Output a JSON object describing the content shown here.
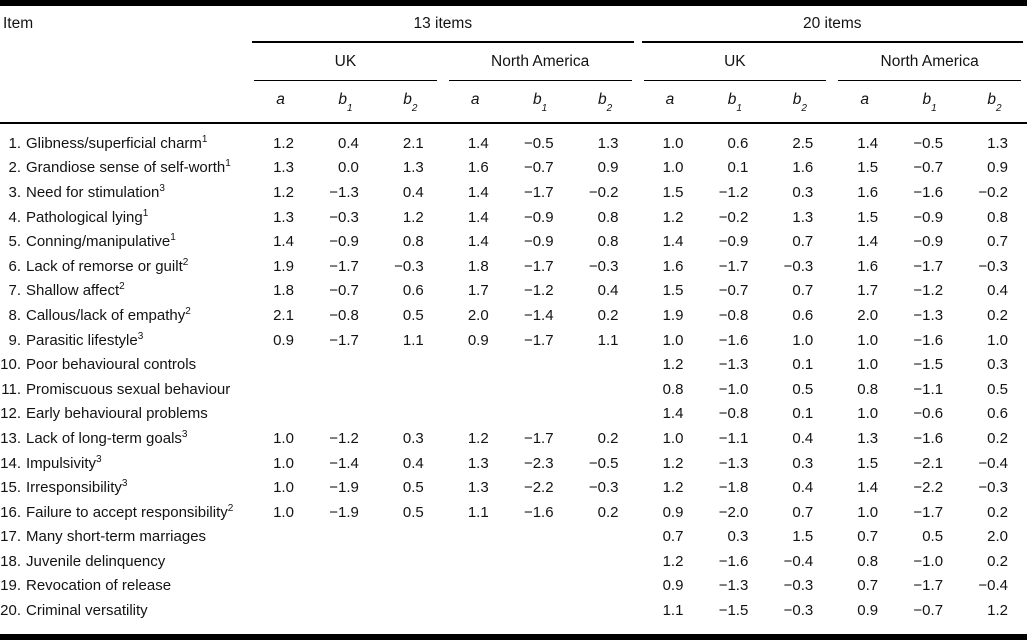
{
  "table": {
    "item_header": "Item",
    "groups": [
      {
        "label": "13 items"
      },
      {
        "label": "20 items"
      }
    ],
    "regions": [
      "UK",
      "North America"
    ],
    "params": [
      {
        "base": "a",
        "sub": ""
      },
      {
        "base": "b",
        "sub": "1"
      },
      {
        "base": "b",
        "sub": "2"
      }
    ],
    "value_columns_order": "13 items UK (a, b1, b2); 13 items North America (a, b1, b2); 20 items UK (a, b1, b2); 20 items North America (a, b1, b2)"
  },
  "rows": [
    {
      "label": "1. Glibness/superficial charm",
      "sup": "1",
      "values": [
        "1.2",
        "0.4",
        "2.1",
        "1.4",
        "−0.5",
        "1.3",
        "1.0",
        "0.6",
        "2.5",
        "1.4",
        "−0.5",
        "1.3"
      ]
    },
    {
      "label": "2. Grandiose sense of self-worth",
      "sup": "1",
      "values": [
        "1.3",
        "0.0",
        "1.3",
        "1.6",
        "−0.7",
        "0.9",
        "1.0",
        "0.1",
        "1.6",
        "1.5",
        "−0.7",
        "0.9"
      ]
    },
    {
      "label": "3. Need for stimulation",
      "sup": "3",
      "values": [
        "1.2",
        "−1.3",
        "0.4",
        "1.4",
        "−1.7",
        "−0.2",
        "1.5",
        "−1.2",
        "0.3",
        "1.6",
        "−1.6",
        "−0.2"
      ]
    },
    {
      "label": "4. Pathological lying",
      "sup": "1",
      "values": [
        "1.3",
        "−0.3",
        "1.2",
        "1.4",
        "−0.9",
        "0.8",
        "1.2",
        "−0.2",
        "1.3",
        "1.5",
        "−0.9",
        "0.8"
      ]
    },
    {
      "label": "5. Conning/manipulative",
      "sup": "1",
      "values": [
        "1.4",
        "−0.9",
        "0.8",
        "1.4",
        "−0.9",
        "0.8",
        "1.4",
        "−0.9",
        "0.7",
        "1.4",
        "−0.9",
        "0.7"
      ]
    },
    {
      "label": "6. Lack of remorse or guilt",
      "sup": "2",
      "values": [
        "1.9",
        "−1.7",
        "−0.3",
        "1.8",
        "−1.7",
        "−0.3",
        "1.6",
        "−1.7",
        "−0.3",
        "1.6",
        "−1.7",
        "−0.3"
      ]
    },
    {
      "label": "7. Shallow affect",
      "sup": "2",
      "values": [
        "1.8",
        "−0.7",
        "0.6",
        "1.7",
        "−1.2",
        "0.4",
        "1.5",
        "−0.7",
        "0.7",
        "1.7",
        "−1.2",
        "0.4"
      ]
    },
    {
      "label": "8. Callous/lack of empathy",
      "sup": "2",
      "values": [
        "2.1",
        "−0.8",
        "0.5",
        "2.0",
        "−1.4",
        "0.2",
        "1.9",
        "−0.8",
        "0.6",
        "2.0",
        "−1.3",
        "0.2"
      ]
    },
    {
      "label": "9. Parasitic lifestyle",
      "sup": "3",
      "values": [
        "0.9",
        "−1.7",
        "1.1",
        "0.9",
        "−1.7",
        "1.1",
        "1.0",
        "−1.6",
        "1.0",
        "1.0",
        "−1.6",
        "1.0"
      ]
    },
    {
      "label": "10. Poor behavioural controls",
      "sup": "",
      "values": [
        "",
        "",
        "",
        "",
        "",
        "",
        "1.2",
        "−1.3",
        "0.1",
        "1.0",
        "−1.5",
        "0.3"
      ]
    },
    {
      "label": "11. Promiscuous sexual behaviour",
      "sup": "",
      "values": [
        "",
        "",
        "",
        "",
        "",
        "",
        "0.8",
        "−1.0",
        "0.5",
        "0.8",
        "−1.1",
        "0.5"
      ]
    },
    {
      "label": "12. Early behavioural problems",
      "sup": "",
      "values": [
        "",
        "",
        "",
        "",
        "",
        "",
        "1.4",
        "−0.8",
        "0.1",
        "1.0",
        "−0.6",
        "0.6"
      ]
    },
    {
      "label": "13. Lack of long-term goals",
      "sup": "3",
      "values": [
        "1.0",
        "−1.2",
        "0.3",
        "1.2",
        "−1.7",
        "0.2",
        "1.0",
        "−1.1",
        "0.4",
        "1.3",
        "−1.6",
        "0.2"
      ]
    },
    {
      "label": "14. Impulsivity",
      "sup": "3",
      "values": [
        "1.0",
        "−1.4",
        "0.4",
        "1.3",
        "−2.3",
        "−0.5",
        "1.2",
        "−1.3",
        "0.3",
        "1.5",
        "−2.1",
        "−0.4"
      ]
    },
    {
      "label": "15. Irresponsibility",
      "sup": "3",
      "values": [
        "1.0",
        "−1.9",
        "0.5",
        "1.3",
        "−2.2",
        "−0.3",
        "1.2",
        "−1.8",
        "0.4",
        "1.4",
        "−2.2",
        "−0.3"
      ]
    },
    {
      "label": "16. Failure to accept responsibility",
      "sup": "2",
      "values": [
        "1.0",
        "−1.9",
        "0.5",
        "1.1",
        "−1.6",
        "0.2",
        "0.9",
        "−2.0",
        "0.7",
        "1.0",
        "−1.7",
        "0.2"
      ]
    },
    {
      "label": "17. Many short-term marriages",
      "sup": "",
      "values": [
        "",
        "",
        "",
        "",
        "",
        "",
        "0.7",
        "0.3",
        "1.5",
        "0.7",
        "0.5",
        "2.0"
      ]
    },
    {
      "label": "18. Juvenile delinquency",
      "sup": "",
      "values": [
        "",
        "",
        "",
        "",
        "",
        "",
        "1.2",
        "−1.6",
        "−0.4",
        "0.8",
        "−1.0",
        "0.2"
      ]
    },
    {
      "label": "19. Revocation of release",
      "sup": "",
      "values": [
        "",
        "",
        "",
        "",
        "",
        "",
        "0.9",
        "−1.3",
        "−0.3",
        "0.7",
        "−1.7",
        "−0.4"
      ]
    },
    {
      "label": "20. Criminal versatility",
      "sup": "",
      "values": [
        "",
        "",
        "",
        "",
        "",
        "",
        "1.1",
        "−1.5",
        "−0.3",
        "0.9",
        "−0.7",
        "1.2"
      ]
    }
  ]
}
